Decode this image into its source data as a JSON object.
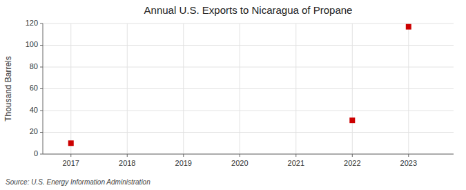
{
  "chart_data": {
    "type": "scatter",
    "title": "Annual U.S. Exports to Nicaragua of Propane",
    "ylabel": "Thousand Barrels",
    "source": "Source: U.S. Energy Information Administration",
    "x": [
      2017,
      2022,
      2023
    ],
    "values": [
      10,
      31,
      117
    ],
    "xlim": [
      2016.5,
      2023.8
    ],
    "ylim": [
      0,
      120
    ],
    "xticks": [
      2017,
      2018,
      2019,
      2020,
      2021,
      2022,
      2023
    ],
    "yticks": [
      0,
      20,
      40,
      60,
      80,
      100,
      120
    ],
    "color": "#cc0000",
    "marker": "square",
    "grid": true
  }
}
